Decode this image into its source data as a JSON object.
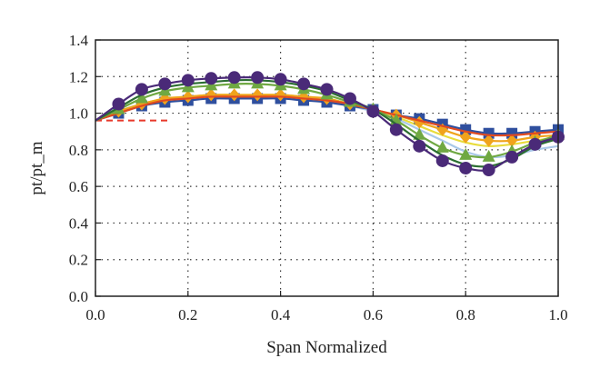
{
  "chart_data": {
    "type": "line",
    "title": "",
    "xlabel": "Span Normalized",
    "ylabel": "pt/pt_m",
    "xlim": [
      0.0,
      1.0
    ],
    "ylim": [
      0.0,
      1.4
    ],
    "xticks": [
      0.0,
      0.2,
      0.4,
      0.6,
      0.8,
      1.0
    ],
    "yticks": [
      0.0,
      0.2,
      0.4,
      0.6,
      0.8,
      1.0,
      1.2,
      1.4
    ],
    "xtick_labels": [
      "0.0",
      "0.2",
      "0.4",
      "0.6",
      "0.8",
      "1.0"
    ],
    "ytick_labels": [
      "0.0",
      "0.2",
      "0.4",
      "0.6",
      "0.8",
      "1.0",
      "1.2",
      "1.4"
    ],
    "grid": true,
    "x": [
      0.0,
      0.05,
      0.1,
      0.15,
      0.2,
      0.25,
      0.3,
      0.35,
      0.4,
      0.45,
      0.5,
      0.55,
      0.6,
      0.65,
      0.7,
      0.75,
      0.8,
      0.85,
      0.9,
      0.95,
      1.0
    ],
    "series": [
      {
        "color": "#a9c8e8",
        "marker": "none",
        "values": [
          0.96,
          1.01,
          1.05,
          1.07,
          1.08,
          1.09,
          1.09,
          1.09,
          1.09,
          1.08,
          1.07,
          1.04,
          1.01,
          0.97,
          0.91,
          0.85,
          0.79,
          0.76,
          0.77,
          0.8,
          0.82
        ]
      },
      {
        "color": "#e8dc3c",
        "marker": "none",
        "values": [
          0.96,
          1.01,
          1.05,
          1.08,
          1.09,
          1.1,
          1.1,
          1.1,
          1.1,
          1.09,
          1.08,
          1.05,
          1.02,
          0.98,
          0.93,
          0.88,
          0.84,
          0.82,
          0.83,
          0.85,
          0.87
        ]
      },
      {
        "color": "#2f4f9e",
        "marker": "square",
        "values": [
          0.96,
          1.0,
          1.04,
          1.06,
          1.07,
          1.08,
          1.08,
          1.08,
          1.08,
          1.07,
          1.06,
          1.04,
          1.02,
          0.99,
          0.97,
          0.94,
          0.91,
          0.89,
          0.89,
          0.9,
          0.91
        ]
      },
      {
        "color": "#f0a31c",
        "marker": "diamond",
        "values": [
          0.96,
          1.01,
          1.05,
          1.08,
          1.09,
          1.1,
          1.1,
          1.1,
          1.1,
          1.09,
          1.08,
          1.05,
          1.02,
          0.99,
          0.95,
          0.91,
          0.87,
          0.85,
          0.85,
          0.87,
          0.88
        ]
      },
      {
        "color": "#e04a20",
        "marker": "none",
        "values": [
          0.96,
          1.0,
          1.04,
          1.07,
          1.08,
          1.09,
          1.09,
          1.09,
          1.09,
          1.08,
          1.07,
          1.05,
          1.02,
          0.99,
          0.96,
          0.93,
          0.9,
          0.88,
          0.88,
          0.89,
          0.9
        ]
      },
      {
        "color": "#6fa842",
        "marker": "triangle",
        "values": [
          0.96,
          1.02,
          1.08,
          1.12,
          1.14,
          1.15,
          1.16,
          1.16,
          1.15,
          1.13,
          1.1,
          1.06,
          1.02,
          0.96,
          0.88,
          0.81,
          0.77,
          0.76,
          0.79,
          0.84,
          0.88
        ]
      },
      {
        "color": "#2c6e32",
        "marker": "none",
        "values": [
          0.96,
          1.03,
          1.1,
          1.14,
          1.16,
          1.17,
          1.18,
          1.18,
          1.17,
          1.15,
          1.12,
          1.07,
          1.02,
          0.94,
          0.85,
          0.77,
          0.72,
          0.71,
          0.75,
          0.82,
          0.86
        ]
      },
      {
        "color": "#4a2a78",
        "marker": "circle",
        "values": [
          0.96,
          1.05,
          1.13,
          1.16,
          1.18,
          1.19,
          1.195,
          1.195,
          1.185,
          1.16,
          1.13,
          1.08,
          1.01,
          0.91,
          0.82,
          0.74,
          0.7,
          0.69,
          0.76,
          0.83,
          0.87
        ]
      }
    ],
    "reference_line": {
      "color": "#e8392b",
      "style": "dashed",
      "x": [
        0.0,
        0.16
      ],
      "y": [
        0.96,
        0.96
      ]
    }
  }
}
